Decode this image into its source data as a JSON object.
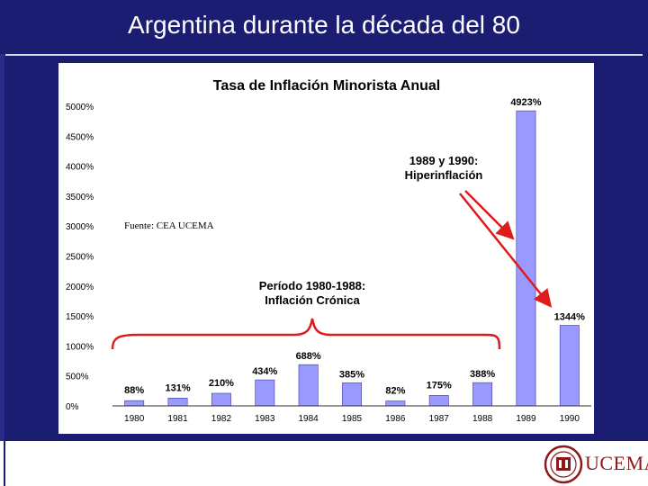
{
  "slide": {
    "title": "Argentina durante la década del 80"
  },
  "chart_data": {
    "type": "bar",
    "title": "Tasa de Inflación Minorista Anual",
    "categories": [
      "1980",
      "1981",
      "1982",
      "1983",
      "1984",
      "1985",
      "1986",
      "1987",
      "1988",
      "1989",
      "1990"
    ],
    "values": [
      88,
      131,
      210,
      434,
      688,
      385,
      82,
      175,
      388,
      4923,
      1344
    ],
    "value_labels": [
      "88%",
      "131%",
      "210%",
      "434%",
      "688%",
      "385%",
      "82%",
      "175%",
      "388%",
      "4923%",
      "1344%"
    ],
    "yticks": [
      "0%",
      "500%",
      "1000%",
      "1500%",
      "2000%",
      "2500%",
      "3000%",
      "3500%",
      "4000%",
      "4500%",
      "5000%"
    ],
    "ytick_values": [
      0,
      500,
      1000,
      1500,
      2000,
      2500,
      3000,
      3500,
      4000,
      4500,
      5000
    ],
    "ylim": [
      0,
      5000
    ],
    "bar_color": "#9999ff",
    "bar_edge_color": "#3a3aa0",
    "annotation_color": "#e01b1b",
    "source": "Fuente: CEA UCEMA",
    "annotations": {
      "hyper_line1": "1989 y 1990:",
      "hyper_line2": "Hiperinflación",
      "chronic_line1": "Período 1980-1988:",
      "chronic_line2": "Inflación Crónica"
    }
  },
  "logo": {
    "text": "UCEMA"
  }
}
